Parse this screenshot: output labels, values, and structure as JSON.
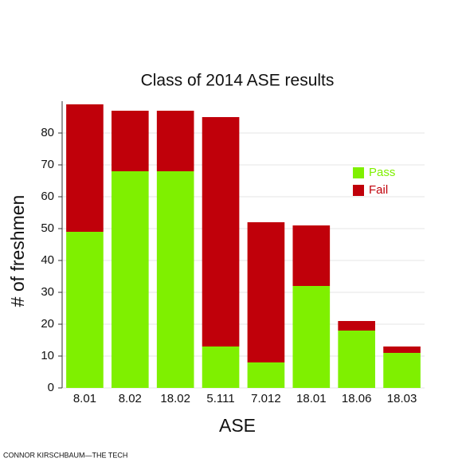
{
  "chart_data": {
    "type": "stacked_bar",
    "title": "Class of 2014 ASE results",
    "x_label": "ASE",
    "y_label": "# of freshmen",
    "categories": [
      "8.01",
      "8.02",
      "18.02",
      "5.111",
      "7.012",
      "18.01",
      "18.06",
      "18.03"
    ],
    "series": [
      {
        "name": "Pass",
        "color": "#7ff000",
        "values": [
          49,
          68,
          68,
          13,
          8,
          32,
          18,
          11
        ]
      },
      {
        "name": "Fail",
        "color": "#c0000a",
        "values": [
          40,
          19,
          19,
          72,
          44,
          19,
          3,
          2
        ]
      }
    ],
    "ylim": [
      0,
      90
    ],
    "yticks": [
      0,
      10,
      20,
      30,
      40,
      50,
      60,
      70,
      80
    ],
    "grid": true,
    "credit": "CONNOR KIRSCHBAUM—THE TECH"
  }
}
